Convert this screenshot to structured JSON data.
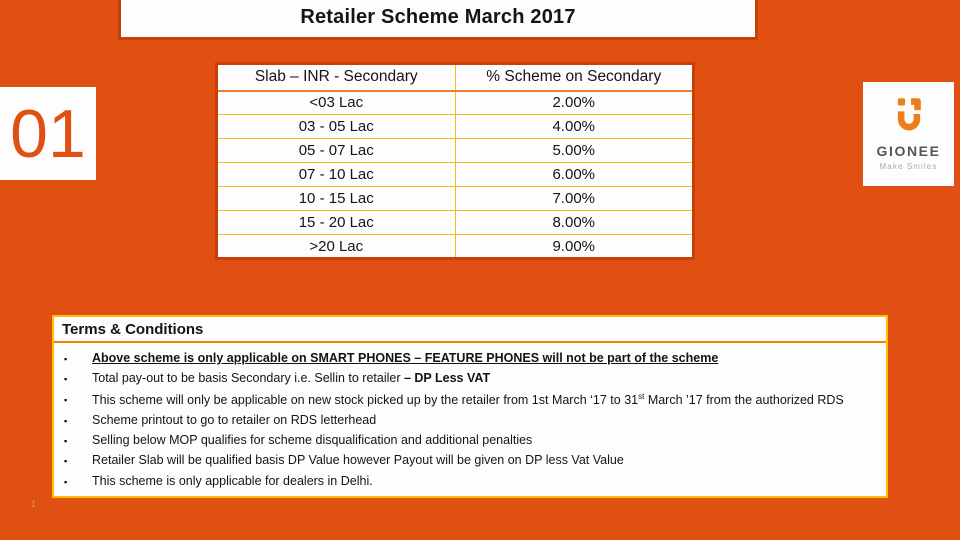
{
  "slide": {
    "title": "Retailer Scheme  March 2017",
    "slide_number_badge": "01",
    "page_number": "1"
  },
  "logo": {
    "brand": "GIONEE",
    "tagline": "Make Smiles",
    "icon": "gionee-magnet-smile-icon"
  },
  "table": {
    "headers": [
      "Slab – INR - Secondary",
      "% Scheme on Secondary"
    ],
    "rows": [
      [
        "<03 Lac",
        "2.00%"
      ],
      [
        "03 - 05 Lac",
        "4.00%"
      ],
      [
        "05 - 07 Lac",
        "5.00%"
      ],
      [
        "07 - 10 Lac",
        "6.00%"
      ],
      [
        "10 - 15 Lac",
        "7.00%"
      ],
      [
        "15 - 20 Lac",
        "8.00%"
      ],
      [
        ">20 Lac",
        "9.00%"
      ]
    ]
  },
  "terms": {
    "heading": "Terms & Conditions",
    "bullet_glyph": "▪",
    "bullets": [
      {
        "segments": [
          {
            "text": "Above scheme is only applicable on SMART PHONES – FEATURE PHONES will not be part of the scheme",
            "bold": true,
            "underline": true
          }
        ]
      },
      {
        "segments": [
          {
            "text": "Total pay-out to be basis Secondary i.e. Sellin to retailer "
          },
          {
            "text": "– DP Less VAT",
            "bold": true
          }
        ]
      },
      {
        "segments": [
          {
            "text": "This scheme will only be applicable on new stock picked up by the retailer from 1st  March ‘17 to 31"
          },
          {
            "text": "st",
            "sup": true
          },
          {
            "text": " March ’17 from the authorized RDS"
          }
        ]
      },
      {
        "segments": [
          {
            "text": "Scheme printout to go to retailer on RDS letterhead"
          }
        ]
      },
      {
        "segments": [
          {
            "text": "Selling below MOP qualifies for scheme disqualification and additional penalties"
          }
        ]
      },
      {
        "segments": [
          {
            "text": "Retailer Slab will be qualified basis DP Value however Payout will be given on DP less Vat Value"
          }
        ]
      },
      {
        "segments": [
          {
            "text": "This scheme is only applicable for dealers in Delhi."
          }
        ]
      }
    ]
  },
  "colors": {
    "background_orange": "#E05012",
    "dark_border_orange": "#C74008",
    "grid_gold": "#FFB81C",
    "separator_orange": "#F08300",
    "terms_border_gold": "#FFC000",
    "logo_icon_orange": "#F07D1A",
    "logo_gray": "#54565A"
  }
}
